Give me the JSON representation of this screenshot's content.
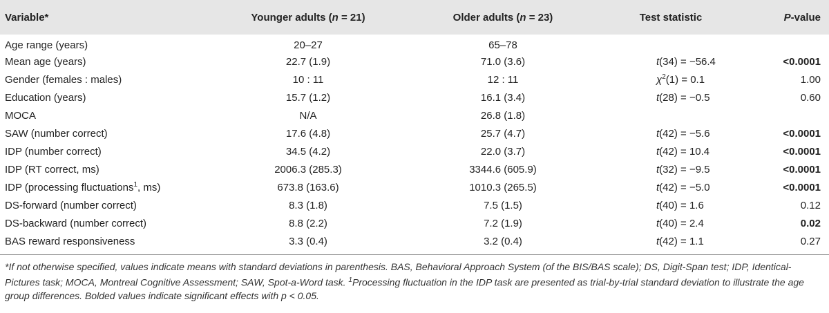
{
  "header": {
    "variable": "Variable*",
    "younger_prefix": "Younger adults (",
    "younger_n": "n",
    "younger_suffix": " = 21)",
    "older_prefix": "Older adults (",
    "older_n": "n",
    "older_suffix": " = 23)",
    "test": "Test statistic",
    "p_letter": "P",
    "p_suffix": "-value"
  },
  "rows": [
    {
      "variable": "Age range (years)",
      "younger": "20–27",
      "older": "65–78",
      "stat_fn": "",
      "stat_rest": "",
      "p": "",
      "p_bold": false
    },
    {
      "variable": "Mean age (years)",
      "younger": "22.7 (1.9)",
      "older": "71.0 (3.6)",
      "stat_fn": "t",
      "stat_rest": "(34) = −56.4",
      "p": "<0.0001",
      "p_bold": true
    },
    {
      "variable": "Gender (females : males)",
      "younger": "10 : 11",
      "older": "12 : 11",
      "stat_fn": "χ",
      "stat_sup": "2",
      "stat_rest": "(1) = 0.1",
      "p": "1.00",
      "p_bold": false
    },
    {
      "variable": "Education (years)",
      "younger": "15.7 (1.2)",
      "older": "16.1 (3.4)",
      "stat_fn": "t",
      "stat_rest": "(28) = −0.5",
      "p": "0.60",
      "p_bold": false
    },
    {
      "variable": "MOCA",
      "younger": "N/A",
      "older": "26.8 (1.8)",
      "stat_fn": "",
      "stat_rest": "",
      "p": "",
      "p_bold": false
    },
    {
      "variable": "SAW (number correct)",
      "younger": "17.6 (4.8)",
      "older": "25.7 (4.7)",
      "stat_fn": "t",
      "stat_rest": "(42) = −5.6",
      "p": "<0.0001",
      "p_bold": true
    },
    {
      "variable": "IDP (number correct)",
      "younger": "34.5 (4.2)",
      "older": "22.0 (3.7)",
      "stat_fn": "t",
      "stat_rest": "(42) = 10.4",
      "p": "<0.0001",
      "p_bold": true
    },
    {
      "variable": "IDP (RT correct, ms)",
      "younger": "2006.3 (285.3)",
      "older": "3344.6 (605.9)",
      "stat_fn": "t",
      "stat_rest": "(32) = −9.5",
      "p": "<0.0001",
      "p_bold": true
    },
    {
      "variable": "IDP (processing fluctuations",
      "variable_sup": "1",
      "variable_suffix": ", ms)",
      "younger": "673.8 (163.6)",
      "older": "1010.3 (265.5)",
      "stat_fn": "t",
      "stat_rest": "(42) = −5.0",
      "p": "<0.0001",
      "p_bold": true
    },
    {
      "variable": "DS-forward (number correct)",
      "younger": "8.3 (1.8)",
      "older": "7.5 (1.5)",
      "stat_fn": "t",
      "stat_rest": "(40) = 1.6",
      "p": "0.12",
      "p_bold": false
    },
    {
      "variable": "DS-backward (number correct)",
      "younger": "8.8 (2.2)",
      "older": "7.2 (1.9)",
      "stat_fn": "t",
      "stat_rest": "(40) = 2.4",
      "p": "0.02",
      "p_bold": true
    },
    {
      "variable": "BAS reward responsiveness",
      "younger": "3.3 (0.4)",
      "older": "3.2 (0.4)",
      "stat_fn": "t",
      "stat_rest": "(42) = 1.1",
      "p": "0.27",
      "p_bold": false
    }
  ],
  "footnote": {
    "main": "*If not otherwise specified, values indicate means with standard deviations in parenthesis. BAS, Behavioral Approach System (of the BIS/BAS scale); DS, Digit-Span test; IDP, Identical-Pictures task; MOCA, Montreal Cognitive Assessment; SAW, Spot-a-Word task. ",
    "sup": "1",
    "rest": "Processing fluctuation in the IDP task are presented as trial-by-trial standard deviation to illustrate the age group differences. Bolded values indicate significant effects with p < 0.05."
  }
}
